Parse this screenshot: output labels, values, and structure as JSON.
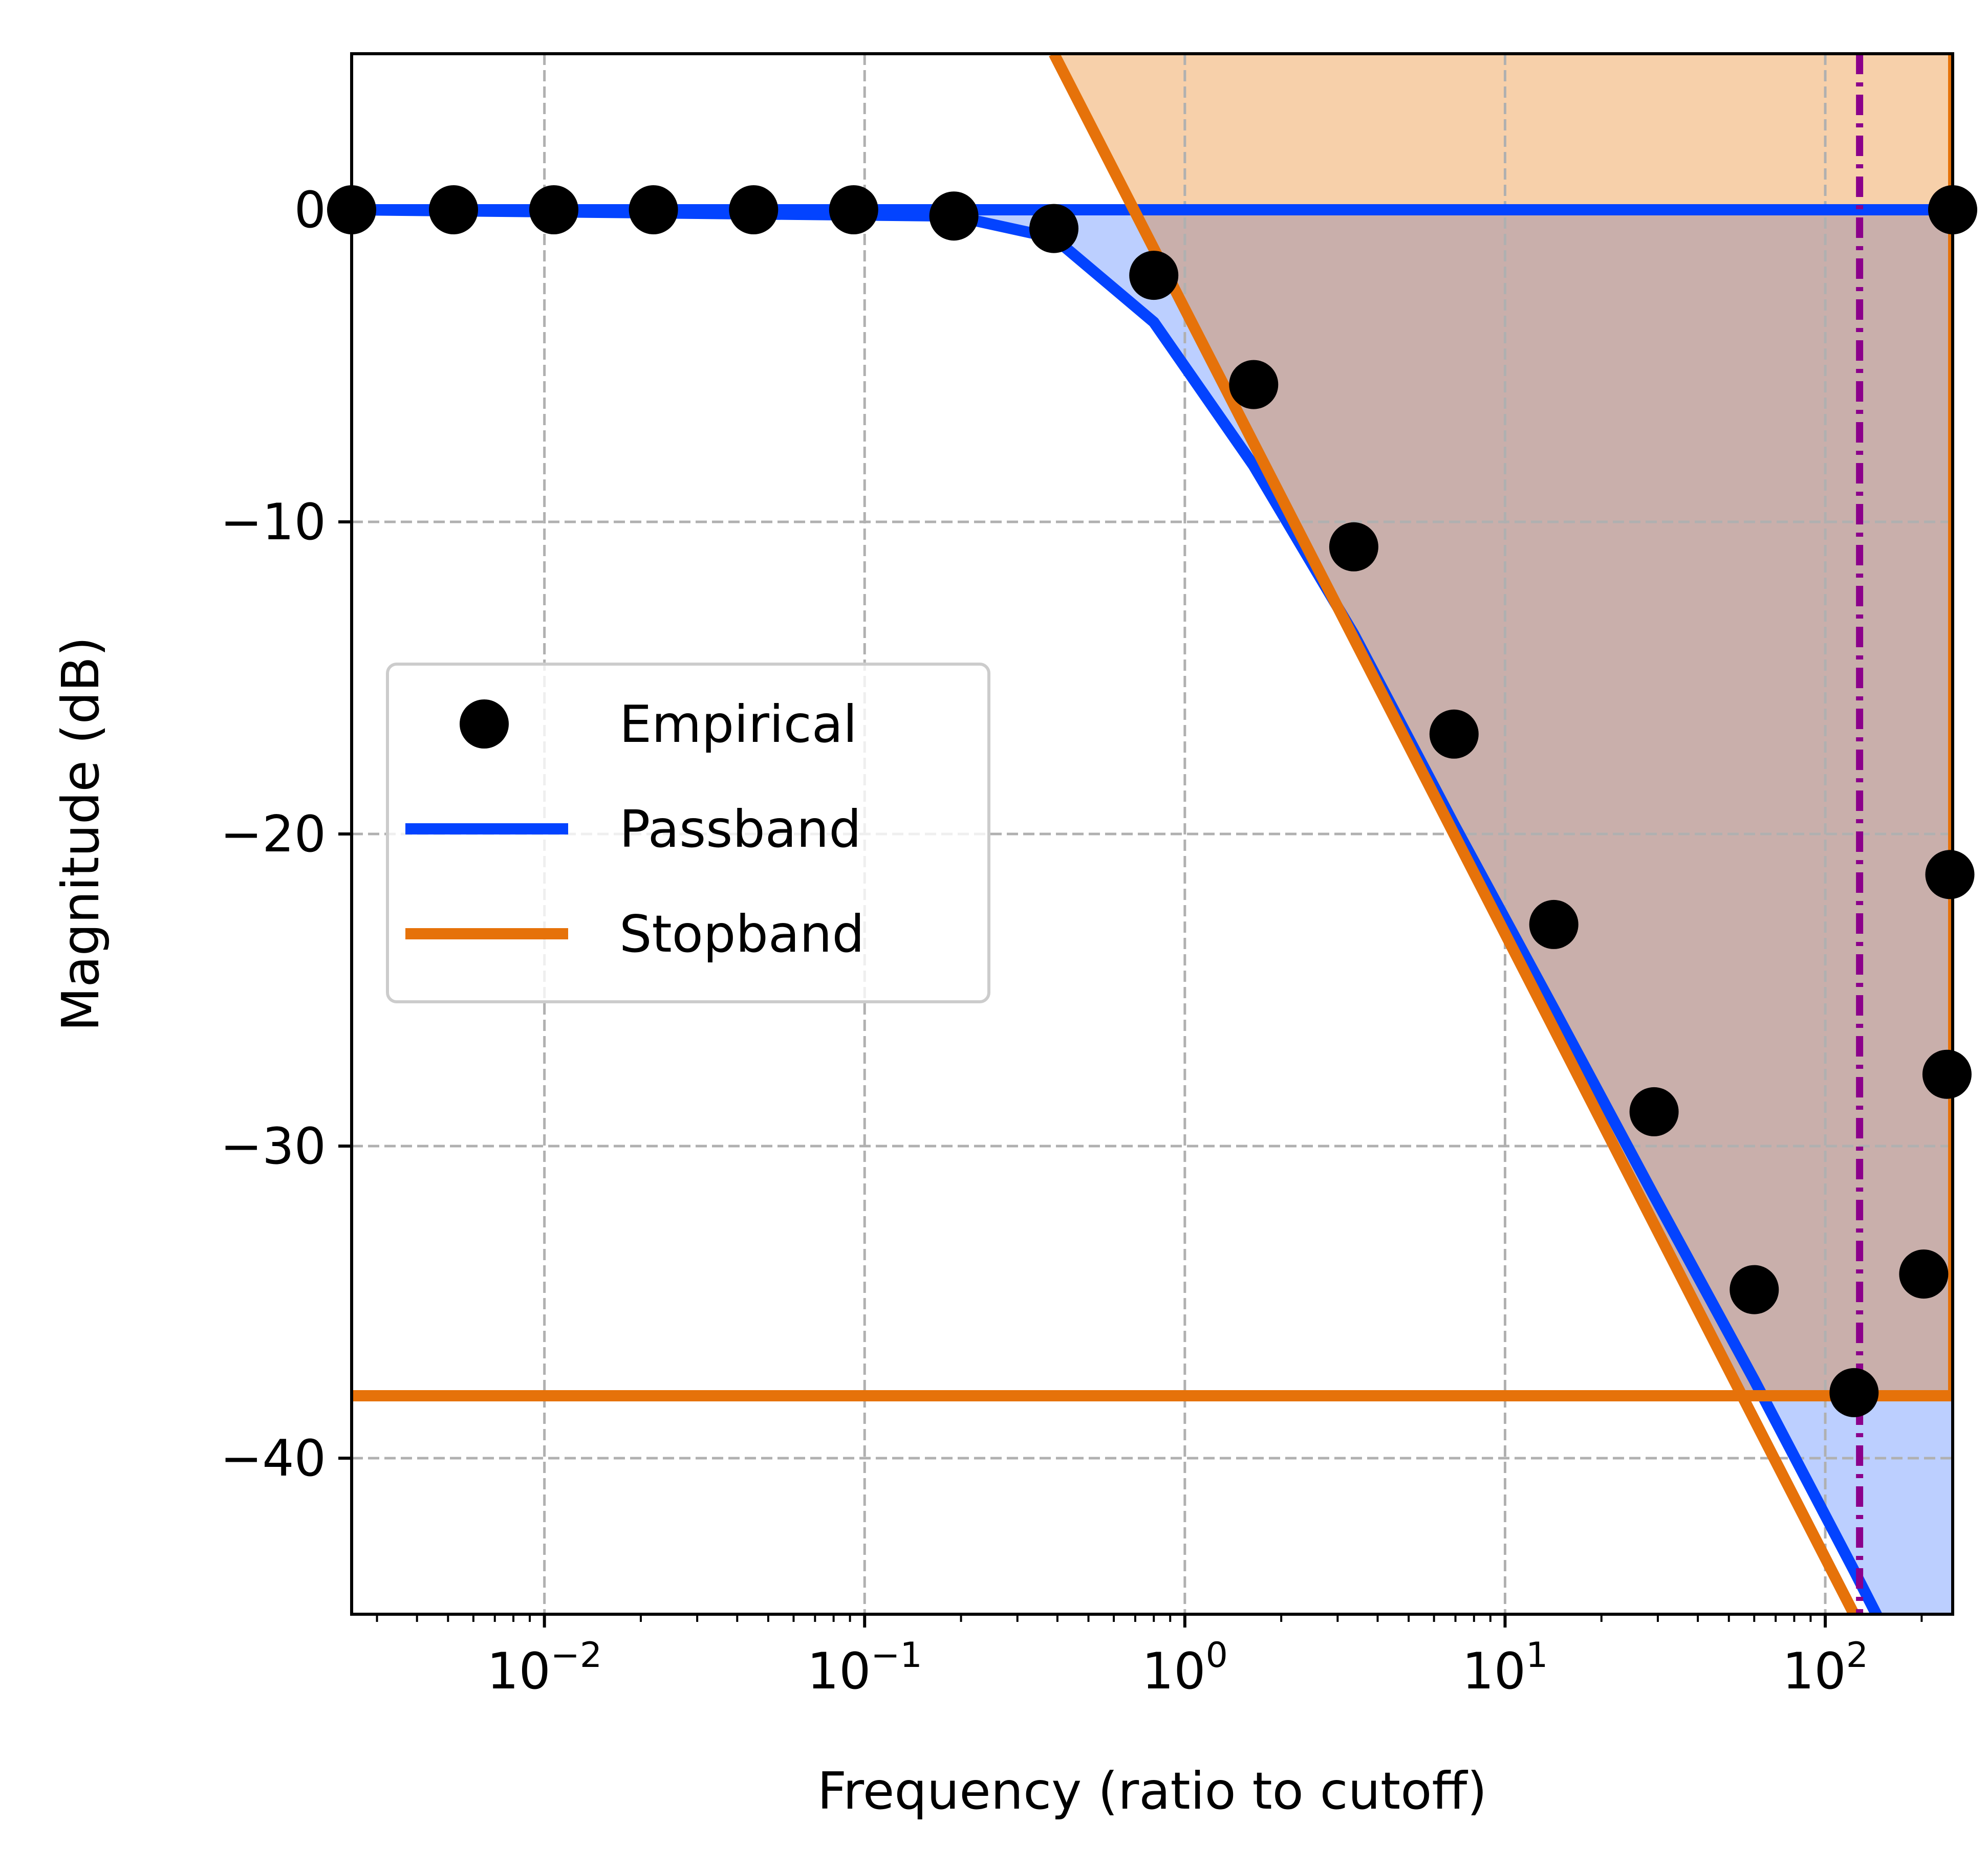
{
  "chart_data": {
    "type": "line",
    "title": "",
    "xlabel": "Frequency (ratio to cutoff)",
    "ylabel": "Magnitude (dB)",
    "xscale": "log",
    "xlim": [
      0.0025,
      250
    ],
    "ylim": [
      -45,
      5
    ],
    "grid": true,
    "legend_position": "center-left",
    "x_ticks": [
      {
        "base": "10",
        "exp": "−2",
        "value": 0.01
      },
      {
        "base": "10",
        "exp": "−1",
        "value": 0.1
      },
      {
        "base": "10",
        "exp": "0",
        "value": 1
      },
      {
        "base": "10",
        "exp": "1",
        "value": 10
      },
      {
        "base": "10",
        "exp": "2",
        "value": 100
      }
    ],
    "y_ticks": [
      {
        "label": "0",
        "value": 0
      },
      {
        "label": "−10",
        "value": -10
      },
      {
        "label": "−20",
        "value": -20
      },
      {
        "label": "−30",
        "value": -30
      },
      {
        "label": "−40",
        "value": -40
      }
    ],
    "series": [
      {
        "name": "Empirical",
        "kind": "scatter",
        "color": "#000000",
        "points": [
          [
            0.0025,
            0
          ],
          [
            0.0052,
            0
          ],
          [
            0.0107,
            0
          ],
          [
            0.0219,
            0
          ],
          [
            0.045,
            0
          ],
          [
            0.0924,
            0
          ],
          [
            0.19,
            -0.2
          ],
          [
            0.39,
            -0.6
          ],
          [
            0.8,
            -2.1
          ],
          [
            1.64,
            -5.6
          ],
          [
            3.37,
            -10.8
          ],
          [
            6.93,
            -16.8
          ],
          [
            14.2,
            -22.9
          ],
          [
            29.2,
            -28.9
          ],
          [
            60,
            -34.6
          ],
          [
            123,
            -37.9
          ],
          [
            203,
            -34.1
          ],
          [
            240,
            -27.7
          ],
          [
            245,
            -21.3
          ],
          [
            250,
            0
          ]
        ]
      },
      {
        "name": "Passband",
        "kind": "line",
        "color": "#0343ff",
        "fill_color": "#bccfff",
        "upper_points": [
          [
            0.0025,
            0
          ],
          [
            250,
            0
          ]
        ],
        "response_points": [
          [
            0.0025,
            0
          ],
          [
            0.19,
            -0.2
          ],
          [
            0.39,
            -0.9
          ],
          [
            0.8,
            -3.6
          ],
          [
            1.64,
            -8.2
          ],
          [
            3.37,
            -13.6
          ],
          [
            6.93,
            -19.7
          ],
          [
            14.2,
            -25.6
          ],
          [
            29.2,
            -31.6
          ],
          [
            60,
            -37.5
          ],
          [
            123,
            -43.6
          ],
          [
            250,
            -49.8
          ]
        ]
      },
      {
        "name": "Stopband",
        "kind": "line",
        "color": "#e6720a",
        "fill_color": "#f7d0aa",
        "overlap_fill_color": "#c9afab",
        "floor_level": -38,
        "slope_points": [
          [
            0.39,
            5
          ],
          [
            123,
            -45
          ]
        ]
      }
    ],
    "annotations": [
      {
        "kind": "vline",
        "x": 128,
        "style": "dash-dot",
        "color": "#8b008b"
      }
    ],
    "colors": {
      "grid": "#b0b0b0",
      "legend_border": "#cccccc"
    }
  }
}
